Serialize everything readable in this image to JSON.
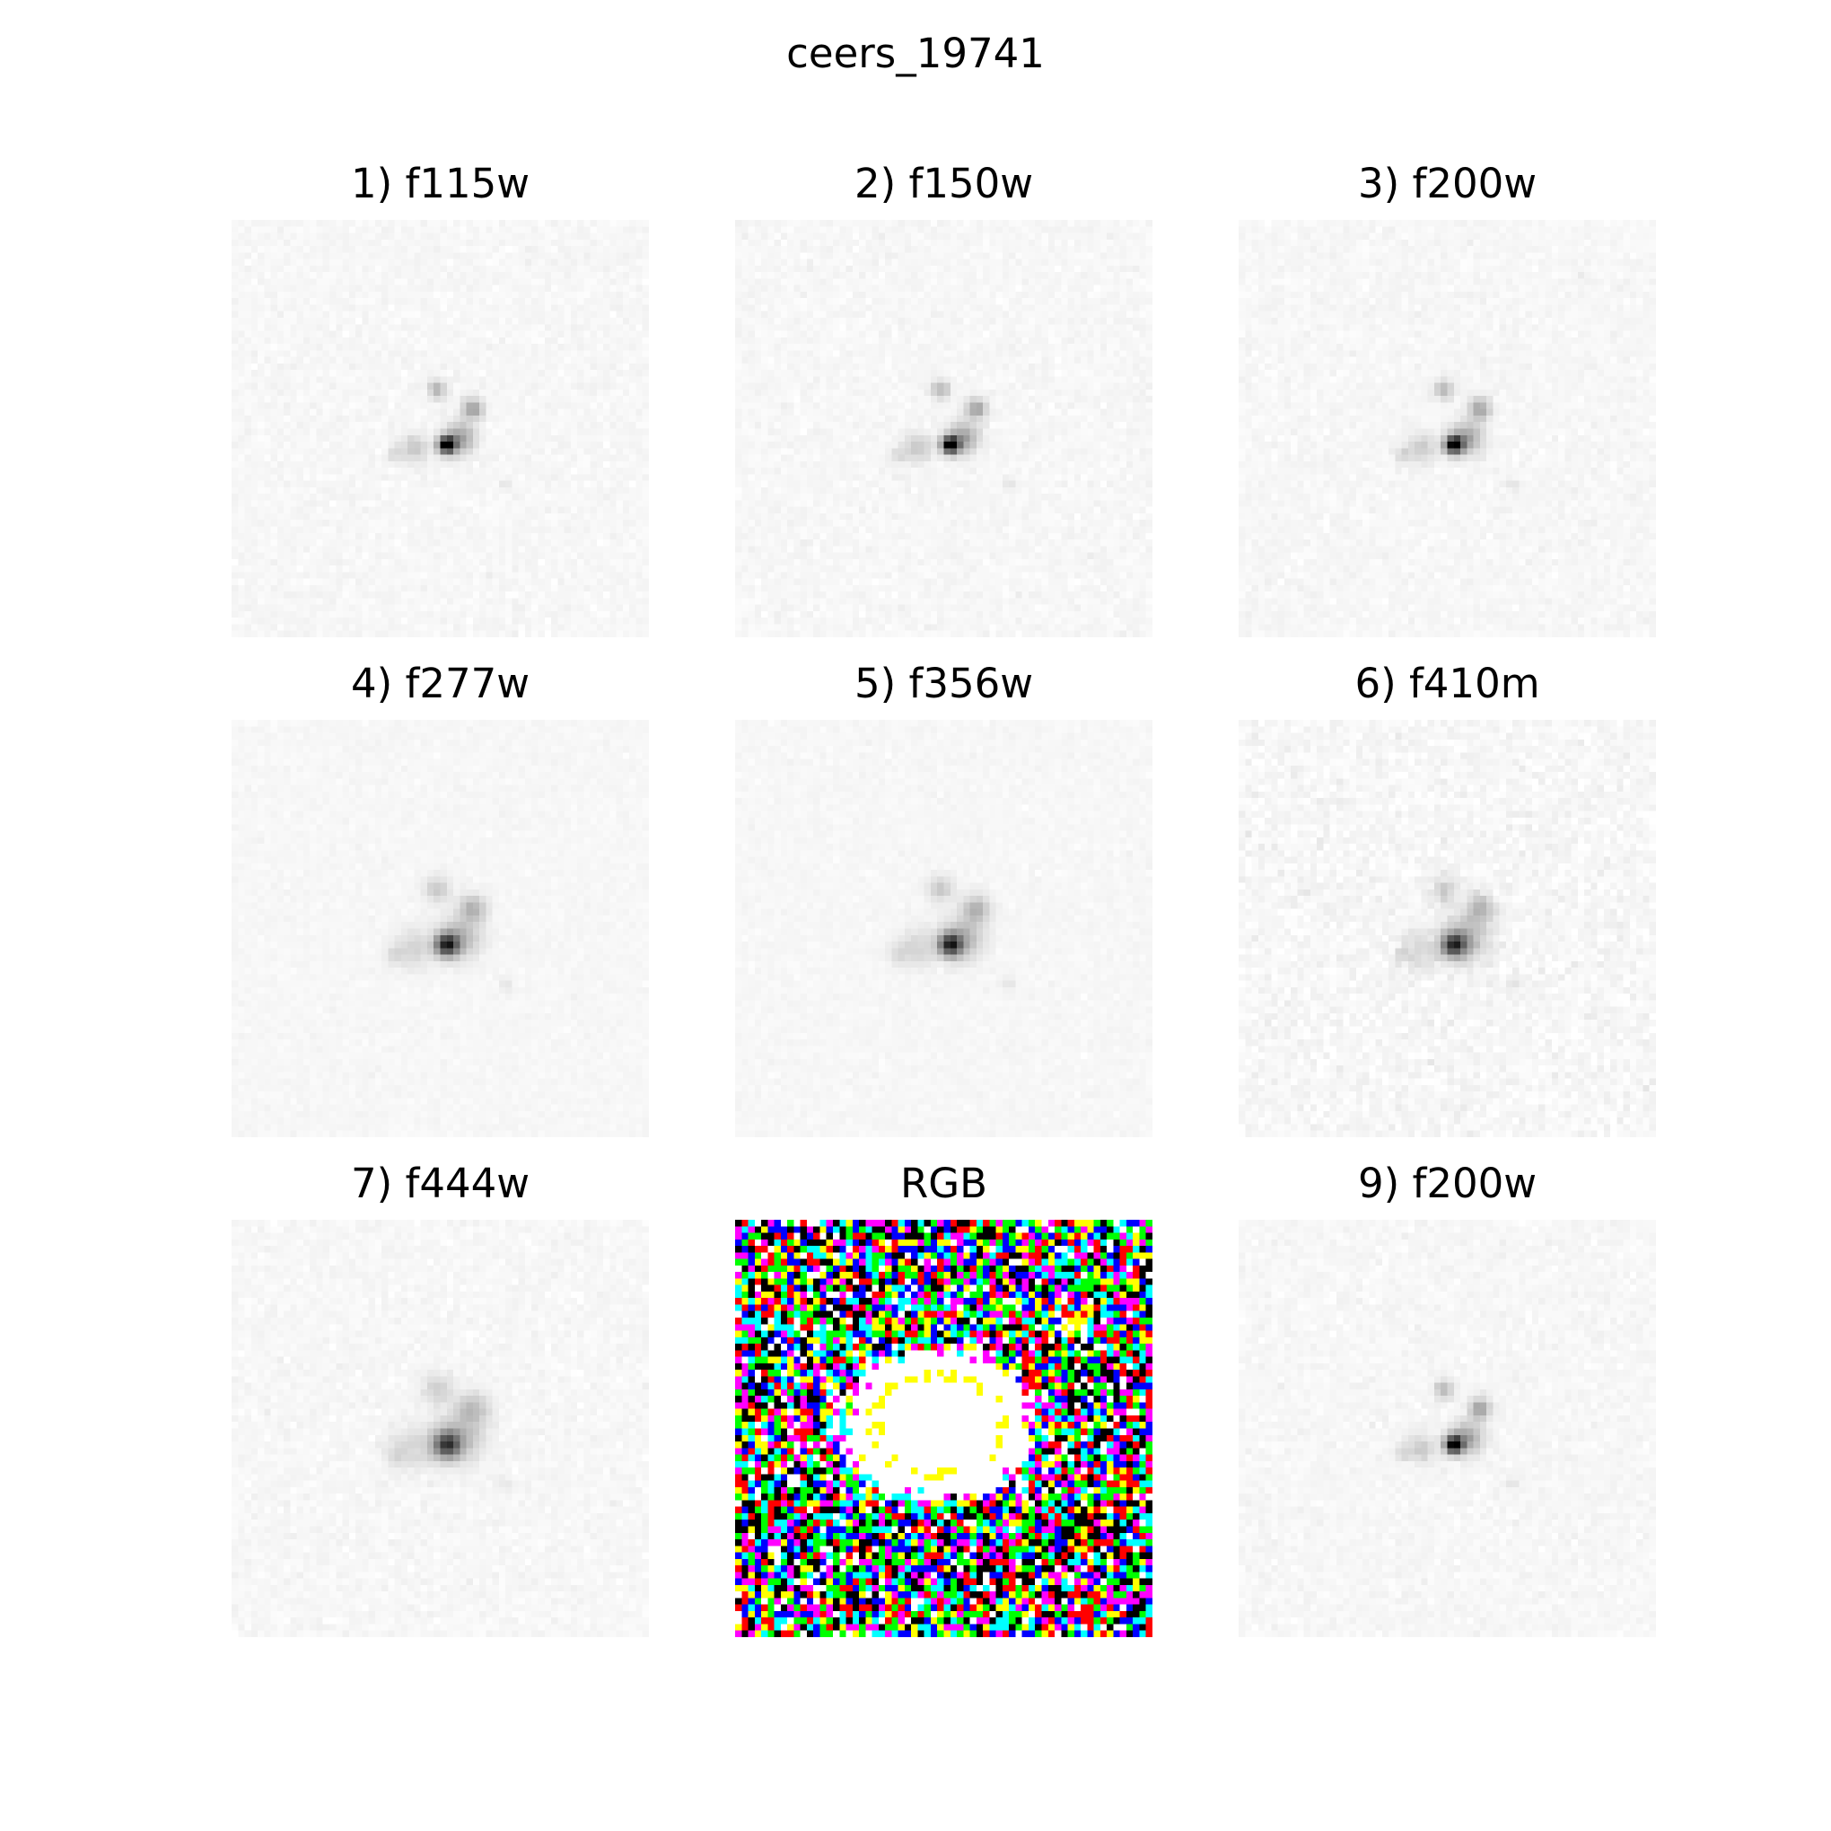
{
  "figure": {
    "title": "ceers_19741"
  },
  "panels": [
    {
      "label": "1) f115w",
      "kind": "grayscale",
      "band": "f115w"
    },
    {
      "label": "2) f150w",
      "kind": "grayscale",
      "band": "f150w"
    },
    {
      "label": "3) f200w",
      "kind": "grayscale",
      "band": "f200w"
    },
    {
      "label": "4) f277w",
      "kind": "grayscale",
      "band": "f277w"
    },
    {
      "label": "5) f356w",
      "kind": "grayscale",
      "band": "f356w"
    },
    {
      "label": "6) f410m",
      "kind": "grayscale",
      "band": "f410m"
    },
    {
      "label": "7) f444w",
      "kind": "grayscale",
      "band": "f444w"
    },
    {
      "label": "RGB",
      "kind": "rgb",
      "band": "RGB"
    },
    {
      "label": "9) f200w",
      "kind": "grayscale",
      "band": "f200w"
    }
  ],
  "colors": {
    "background": "#ffffff",
    "text": "#000000",
    "sky": "#f7f7f7",
    "source": "#000000"
  }
}
